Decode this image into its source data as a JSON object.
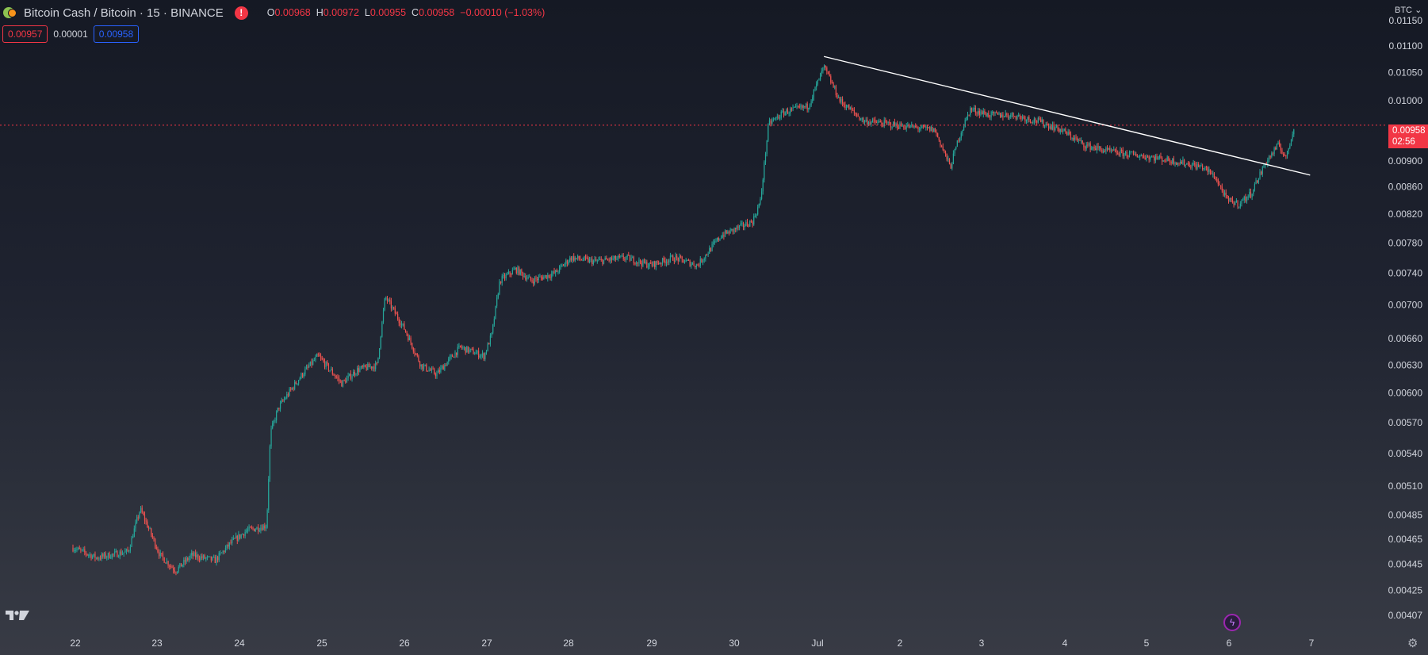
{
  "header": {
    "symbol_title": "Bitcoin Cash / Bitcoin · 15 · BINANCE",
    "ohlc": {
      "o_label": "O",
      "o_value": "0.00968",
      "h_label": "H",
      "h_value": "0.00972",
      "l_label": "L",
      "l_value": "0.00955",
      "c_label": "C",
      "c_value": "0.00958",
      "change": "−0.00010 (−1.03%)"
    },
    "warning_icon": "!",
    "bid": "0.00957",
    "spread": "0.00001",
    "ask": "0.00958"
  },
  "price_axis": {
    "currency": "BTC",
    "last_price": "0.00958",
    "countdown": "02:56"
  },
  "colors": {
    "up": "#26a69a",
    "down": "#ef5350",
    "last_price_line": "#f23645",
    "trendline": "#ffffff",
    "background_top": "#151924",
    "background_bottom": "#383b45"
  },
  "icons": [
    "coin-icon",
    "warning-icon",
    "tradingview-logo-icon",
    "lightning-icon",
    "gear-icon",
    "chevron-down-icon"
  ],
  "chart_data": {
    "type": "candlestick",
    "timeframe": "15",
    "x_ticks": [
      "22",
      "23",
      "24",
      "25",
      "26",
      "27",
      "28",
      "29",
      "30",
      "Jul",
      "2",
      "3",
      "4",
      "5",
      "6",
      "7"
    ],
    "y_ticks": [
      "0.01150",
      "0.01100",
      "0.01050",
      "0.01000",
      "0.00900",
      "0.00860",
      "0.00820",
      "0.00780",
      "0.00740",
      "0.00700",
      "0.00660",
      "0.00630",
      "0.00600",
      "0.00570",
      "0.00540",
      "0.00510",
      "0.00485",
      "0.00465",
      "0.00445",
      "0.00425",
      "0.00407"
    ],
    "price_path": [
      [
        0.0,
        0.00458
      ],
      [
        0.3,
        0.0045
      ],
      [
        0.7,
        0.00455
      ],
      [
        0.85,
        0.0049
      ],
      [
        1.1,
        0.00452
      ],
      [
        1.3,
        0.0044
      ],
      [
        1.5,
        0.00452
      ],
      [
        1.8,
        0.00448
      ],
      [
        2.0,
        0.00462
      ],
      [
        2.2,
        0.00472
      ],
      [
        2.45,
        0.00476
      ],
      [
        2.5,
        0.0056
      ],
      [
        2.6,
        0.00585
      ],
      [
        2.9,
        0.0062
      ],
      [
        3.1,
        0.0064
      ],
      [
        3.4,
        0.0061
      ],
      [
        3.6,
        0.00625
      ],
      [
        3.85,
        0.0063
      ],
      [
        3.95,
        0.0071
      ],
      [
        4.2,
        0.0067
      ],
      [
        4.4,
        0.0063
      ],
      [
        4.6,
        0.0062
      ],
      [
        4.9,
        0.0065
      ],
      [
        5.2,
        0.0064
      ],
      [
        5.3,
        0.00665
      ],
      [
        5.4,
        0.0073
      ],
      [
        5.6,
        0.00745
      ],
      [
        5.8,
        0.0073
      ],
      [
        6.1,
        0.0074
      ],
      [
        6.3,
        0.0076
      ],
      [
        6.6,
        0.00755
      ],
      [
        7.0,
        0.0076
      ],
      [
        7.3,
        0.0075
      ],
      [
        7.6,
        0.0076
      ],
      [
        7.9,
        0.0075
      ],
      [
        8.2,
        0.0079
      ],
      [
        8.6,
        0.0081
      ],
      [
        8.7,
        0.0084
      ],
      [
        8.8,
        0.0096
      ],
      [
        9.0,
        0.0098
      ],
      [
        9.3,
        0.0099
      ],
      [
        9.5,
        0.0106
      ],
      [
        9.7,
        0.01
      ],
      [
        10.0,
        0.00965
      ],
      [
        10.3,
        0.0096
      ],
      [
        10.6,
        0.00955
      ],
      [
        10.9,
        0.0095
      ],
      [
        11.1,
        0.0089
      ],
      [
        11.2,
        0.00935
      ],
      [
        11.35,
        0.00985
      ],
      [
        11.6,
        0.00975
      ],
      [
        11.9,
        0.00975
      ],
      [
        12.2,
        0.00965
      ],
      [
        12.5,
        0.0095
      ],
      [
        12.8,
        0.00925
      ],
      [
        13.1,
        0.00915
      ],
      [
        13.4,
        0.0091
      ],
      [
        13.7,
        0.00905
      ],
      [
        14.0,
        0.00898
      ],
      [
        14.3,
        0.0089
      ],
      [
        14.45,
        0.00875
      ],
      [
        14.6,
        0.0084
      ],
      [
        14.75,
        0.00835
      ],
      [
        14.9,
        0.0085
      ],
      [
        15.1,
        0.009
      ],
      [
        15.25,
        0.00925
      ],
      [
        15.35,
        0.00905
      ],
      [
        15.4,
        0.0093
      ],
      [
        15.45,
        0.00958
      ]
    ],
    "trendline": {
      "start": [
        9.5,
        0.0108
      ],
      "end": [
        15.65,
        0.00878
      ]
    },
    "last_price": 0.00958,
    "grid": false
  }
}
